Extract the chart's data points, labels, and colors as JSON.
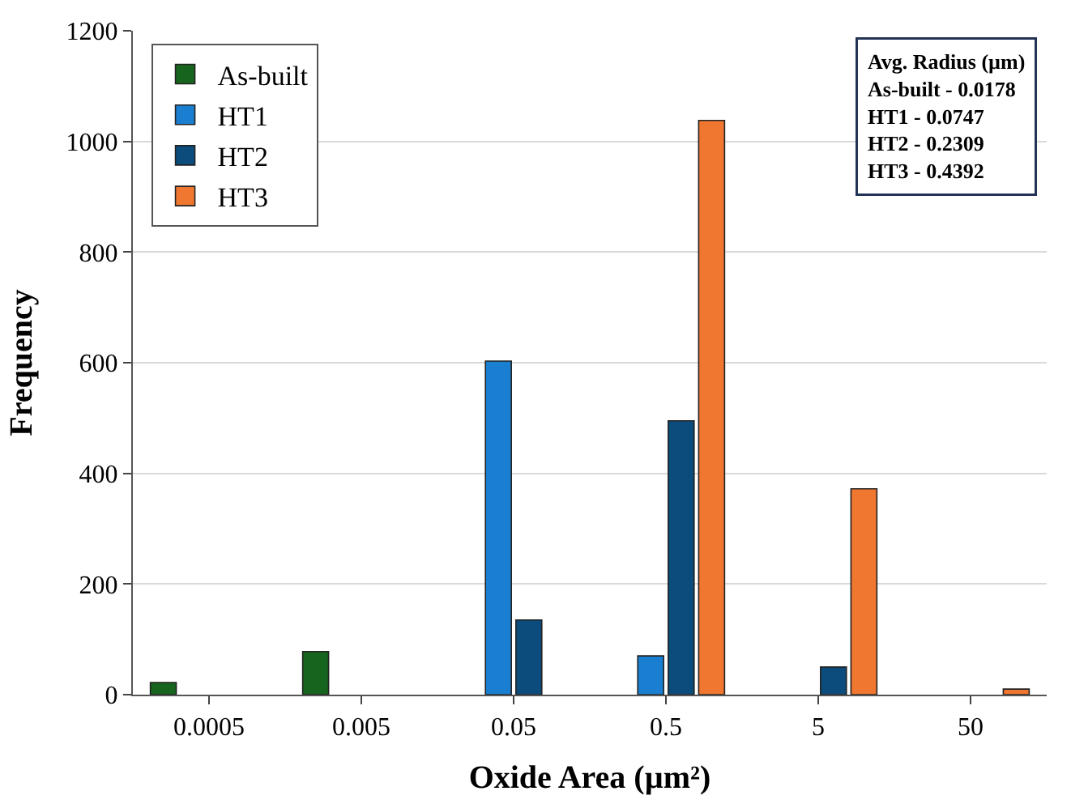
{
  "chart_data": {
    "type": "bar",
    "xlabel": "Oxide Area (µm²)",
    "ylabel": "Frequency",
    "categories": [
      "0.0005",
      "0.005",
      "0.05",
      "0.5",
      "5",
      "50"
    ],
    "series": [
      {
        "name": "As-built",
        "color": "#17641e",
        "values": [
          22,
          78,
          null,
          null,
          null,
          null
        ]
      },
      {
        "name": "HT1",
        "color": "#1a7fd0",
        "values": [
          null,
          null,
          603,
          70,
          null,
          null
        ]
      },
      {
        "name": "HT2",
        "color": "#0c4c7c",
        "values": [
          null,
          null,
          135,
          495,
          50,
          null
        ]
      },
      {
        "name": "HT3",
        "color": "#f07730",
        "values": [
          null,
          null,
          null,
          1038,
          372,
          10
        ]
      }
    ],
    "ylim": [
      0,
      1200
    ],
    "yticks": [
      0,
      200,
      400,
      600,
      800,
      1000,
      1200
    ],
    "grid": "y",
    "legend": "top left",
    "annotations": [
      "Avg. Radius (µm)",
      "As-built - 0.0178",
      "HT1 - 0.0747",
      "HT2 - 0.2309",
      "HT3 - 0.4392"
    ]
  }
}
